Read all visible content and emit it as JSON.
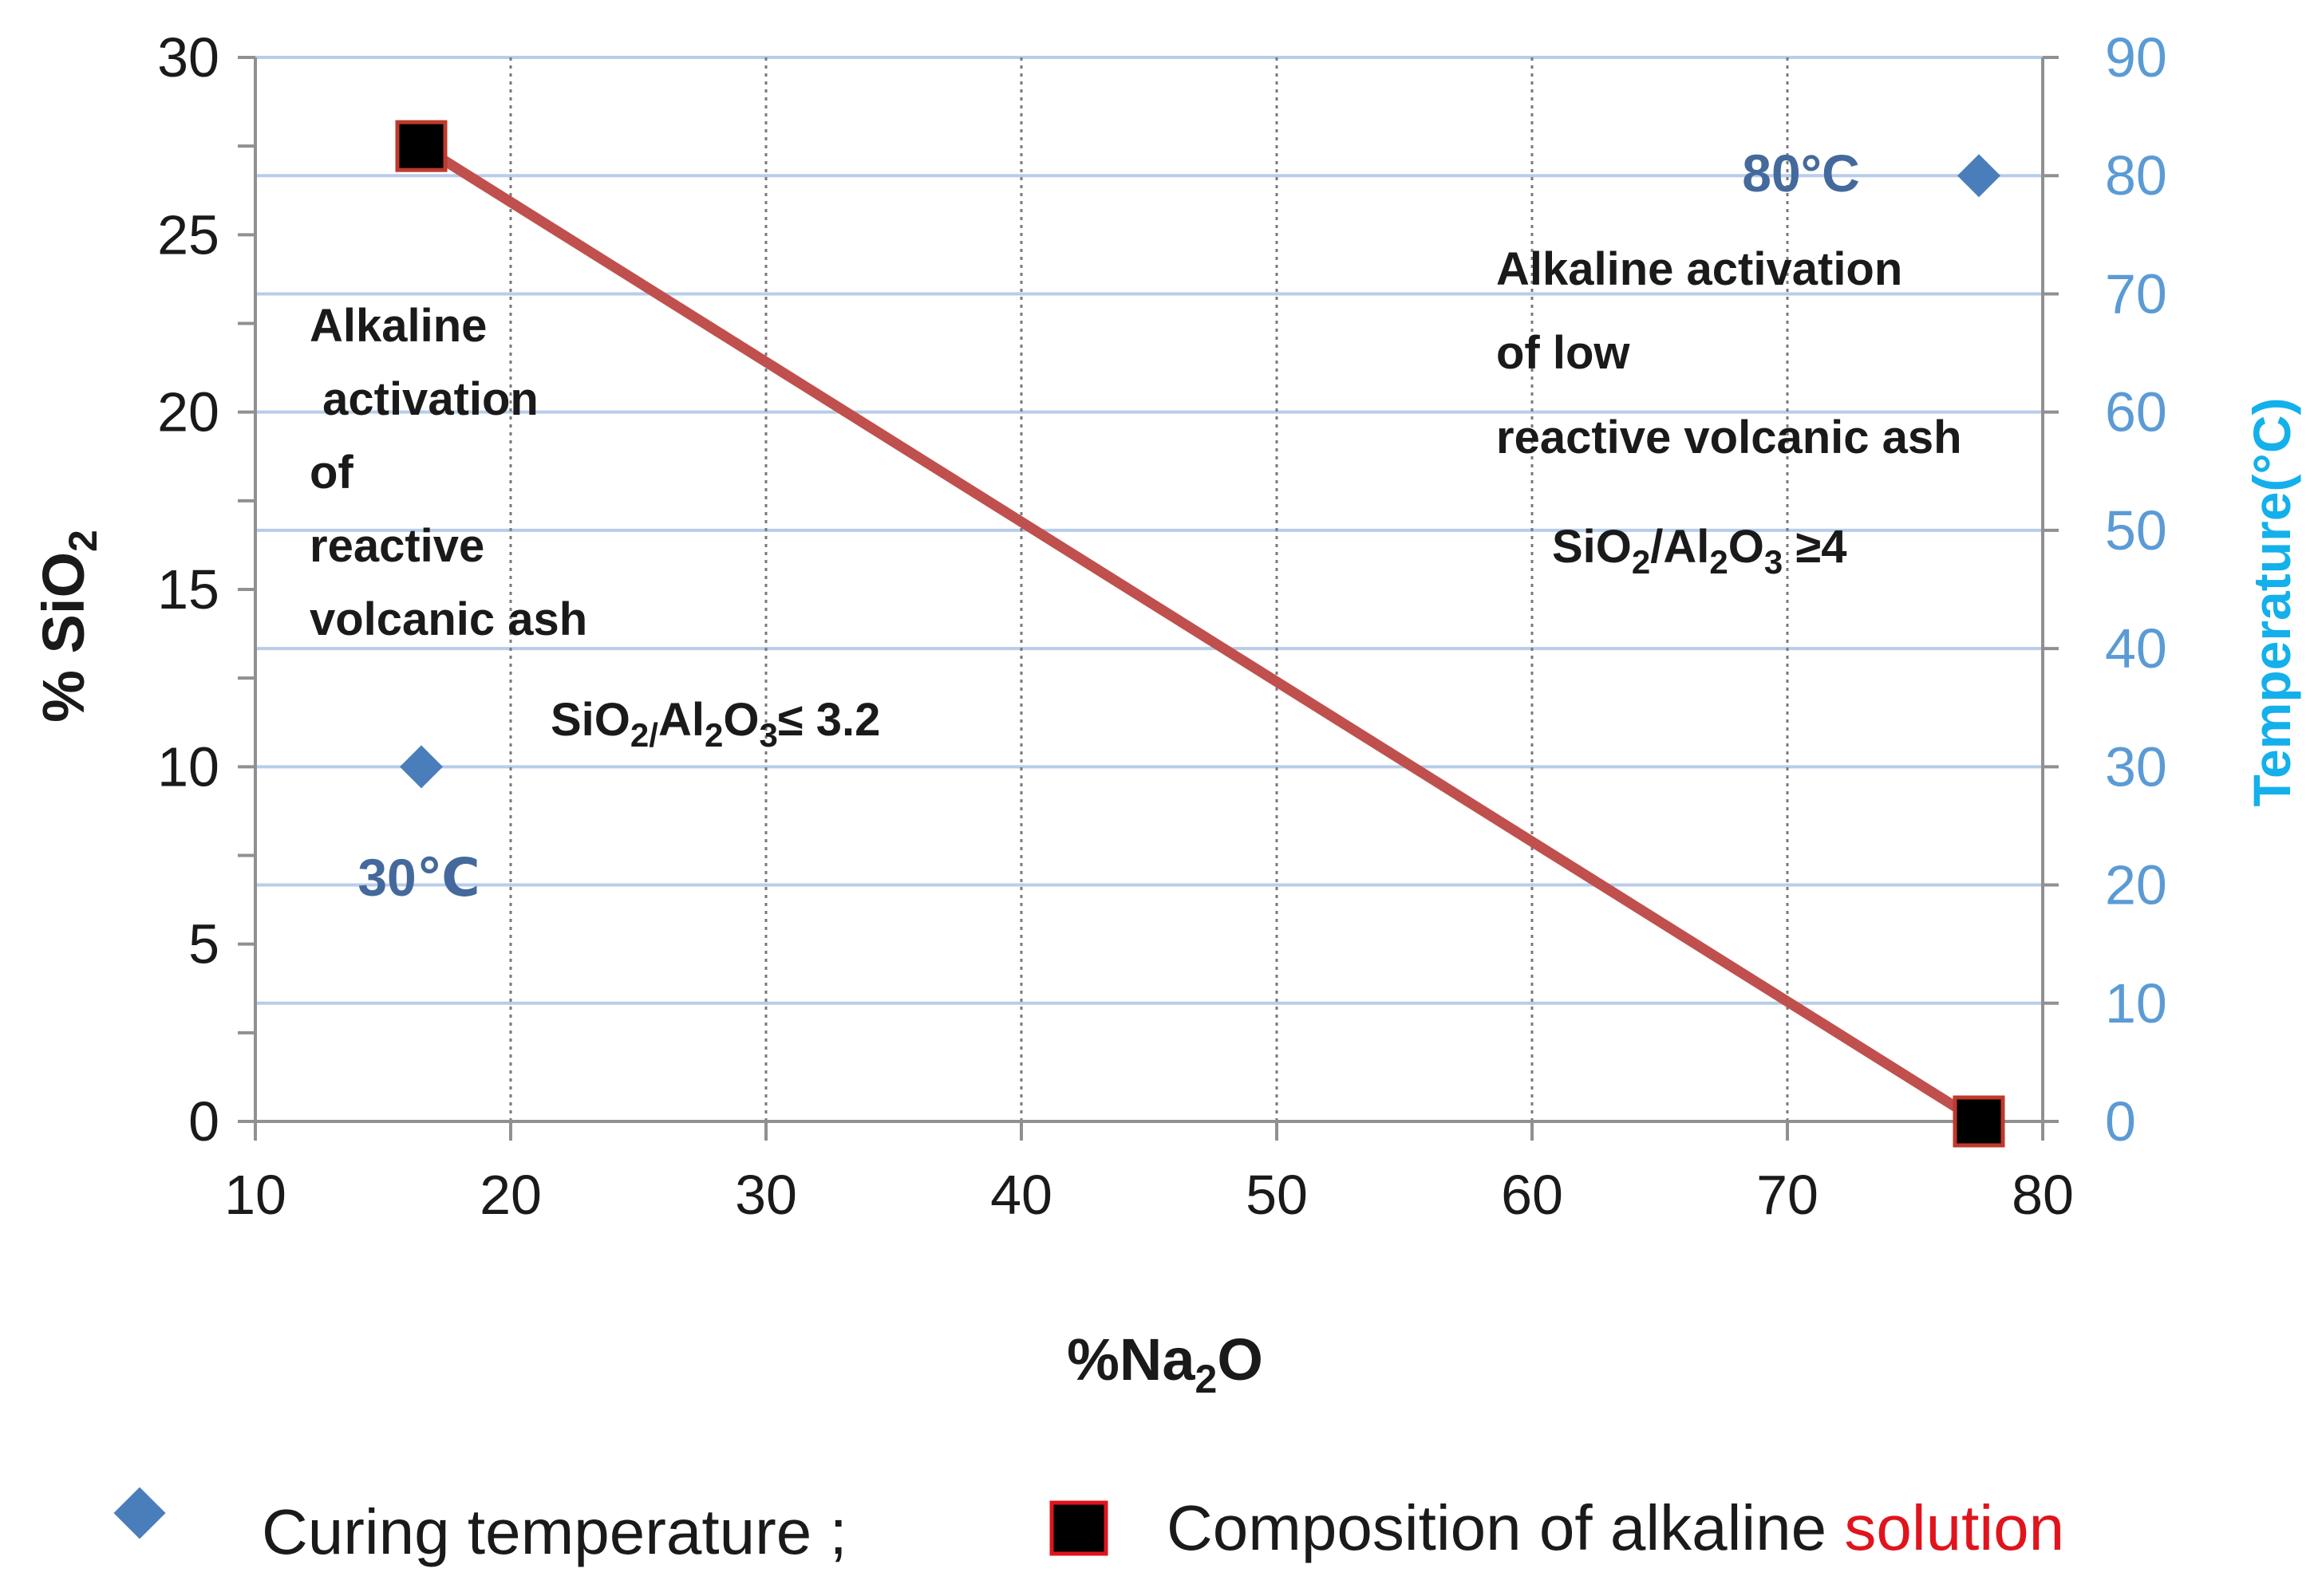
{
  "chart_data": {
    "type": "scatter",
    "x_axis": {
      "label_main": "%Na",
      "label_sub": "2",
      "label_tail": "O",
      "range": [
        10,
        80
      ],
      "ticks": [
        "10",
        "20",
        "30",
        "40",
        "50",
        "60",
        "70",
        "80"
      ]
    },
    "y_axis_left": {
      "label_main": "% SiO",
      "label_sub": "2",
      "range": [
        0,
        30
      ],
      "ticks": [
        "0",
        "5",
        "10",
        "15",
        "20",
        "25",
        "30"
      ]
    },
    "y_axis_right": {
      "label": "Temperature(°C)",
      "range": [
        0,
        90
      ],
      "ticks": [
        "0",
        "10",
        "20",
        "30",
        "40",
        "50",
        "60",
        "70",
        "80",
        "90"
      ]
    },
    "grid": true,
    "series": [
      {
        "name": "Curing temperature",
        "axis": "right",
        "marker": "diamond",
        "color": "#4a7ebb",
        "points": [
          {
            "x": 16.5,
            "y": 30
          },
          {
            "x": 77.5,
            "y": 80
          }
        ]
      },
      {
        "name": "Composition of alkaline solution",
        "axis": "left",
        "marker": "square",
        "color": "#000000",
        "marker_edge": "#c0392b",
        "line_color": "#c0504d",
        "points": [
          {
            "x": 16.5,
            "y": 27.5
          },
          {
            "x": 77.5,
            "y": 0
          }
        ]
      }
    ],
    "annotations": {
      "temp_low": "30℃",
      "temp_high": "80°C",
      "left_block": [
        "Alkaline",
        " activation",
        "of",
        "reactive",
        "volcanic ash"
      ],
      "left_ratio": {
        "a": "SiO",
        "a_sub": "2/",
        "b": "Al",
        "b_sub": "2",
        "c": "O",
        "c_sub": "3",
        "tail": "≤ 3.2"
      },
      "right_block": [
        "Alkaline activation",
        "of low",
        "reactive volcanic ash"
      ],
      "right_ratio": {
        "a": "SiO",
        "a_sub": "2",
        "b": "/Al",
        "b_sub": "2",
        "c": "O",
        "c_sub": "3",
        "tail": " ≥4"
      }
    },
    "legend": {
      "placement": "bottom",
      "item1": "Curing temperature ;",
      "item2_main": "Composition of alkaline ",
      "item2_red": "solution"
    }
  }
}
